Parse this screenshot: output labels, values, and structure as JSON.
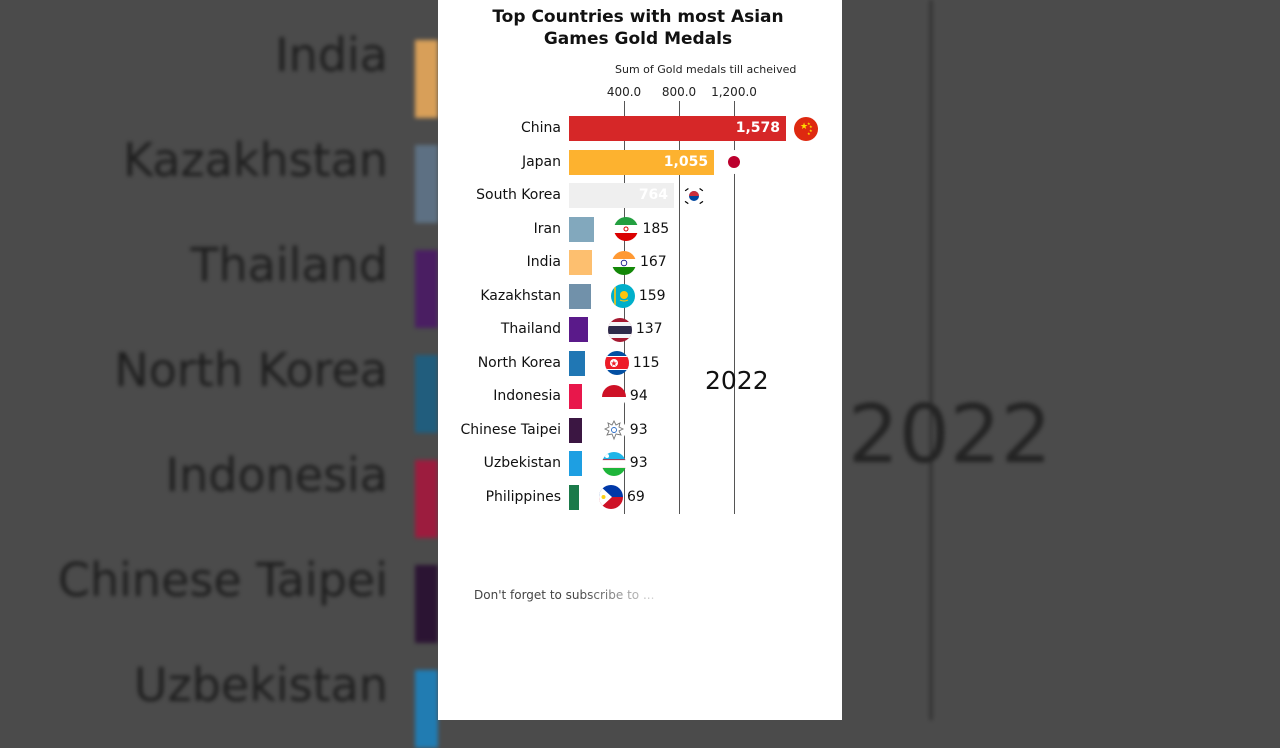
{
  "background": {
    "labels": [
      "India",
      "Kazakhstan",
      "Thailand",
      "North Korea",
      "Indonesia",
      "Chinese Taipei",
      "Uzbekistan"
    ],
    "bar_colors": [
      "#e0a45a",
      "#5f7386",
      "#4a1c64",
      "#1f5f80",
      "#a11a3e",
      "#2a1232",
      "#1f7fb8"
    ],
    "year": "2022"
  },
  "chart_data": {
    "type": "bar",
    "orientation": "horizontal",
    "title": "Top Countries with most Asian Games Gold Medals",
    "xlabel": "Sum of Gold medals till acheived",
    "xticks": [
      400,
      800,
      1200
    ],
    "xtick_labels": [
      "400.0",
      "800.0",
      "1,200.0"
    ],
    "xlim": [
      0,
      1578
    ],
    "categories": [
      "China",
      "Japan",
      "South Korea",
      "Iran",
      "India",
      "Kazakhstan",
      "Thailand",
      "North Korea",
      "Indonesia",
      "Chinese Taipei",
      "Uzbekistan",
      "Philippines"
    ],
    "values": [
      1578,
      1055,
      764,
      185,
      167,
      159,
      137,
      115,
      94,
      93,
      93,
      69
    ],
    "value_labels": [
      "1,578",
      "1,055",
      "764",
      "185",
      "167",
      "159",
      "137",
      "115",
      "94",
      "93",
      "93",
      "69"
    ],
    "colors": [
      "#d62728",
      "#fdb22f",
      "#efefef",
      "#82a8bd",
      "#fdbf6f",
      "#7191aa",
      "#5a1a8a",
      "#2077b4",
      "#e8174b",
      "#3b1642",
      "#1e9fe2",
      "#1b7a4a"
    ],
    "flag_icons": [
      "china-flag-icon",
      "japan-flag-icon",
      "south-korea-flag-icon",
      "iran-flag-icon",
      "india-flag-icon",
      "kazakhstan-flag-icon",
      "thailand-flag-icon",
      "north-korea-flag-icon",
      "indonesia-flag-icon",
      "chinese-taipei-flag-icon",
      "uzbekistan-flag-icon",
      "philippines-flag-icon"
    ],
    "grid": true,
    "annotation_year": "2022"
  },
  "footer": {
    "text": "Don't forget to subscribe to ..."
  }
}
